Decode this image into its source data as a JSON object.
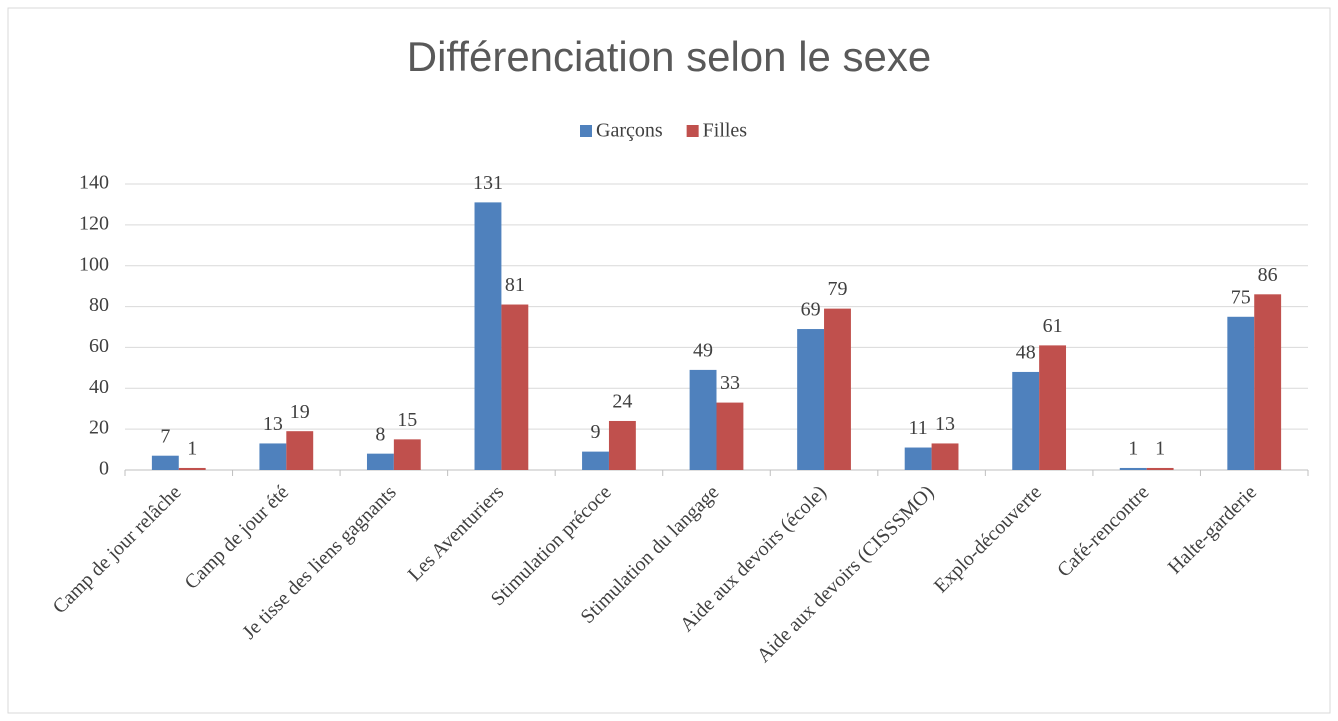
{
  "chart_data": {
    "type": "bar",
    "title": "Différenciation selon le sexe",
    "categories": [
      "Camp de jour relâche",
      "Camp de jour été",
      "Je tisse des liens gagnants",
      "Les Aventuriers",
      "Stimulation précoce",
      "Stimulation du langage",
      "Aide aux devoirs (école)",
      "Aide aux devoirs (CISSSMO)",
      "Explo-découverte",
      "Café-rencontre",
      "Halte-garderie"
    ],
    "series": [
      {
        "name": "Garçons",
        "color": "#4f81bd",
        "values": [
          7,
          13,
          8,
          131,
          9,
          49,
          69,
          11,
          48,
          1,
          75
        ]
      },
      {
        "name": "Filles",
        "color": "#c0504d",
        "values": [
          1,
          19,
          15,
          81,
          24,
          33,
          79,
          13,
          61,
          1,
          86
        ]
      }
    ],
    "ylim": [
      0,
      140
    ],
    "yticks": [
      0,
      20,
      40,
      60,
      80,
      100,
      120,
      140
    ],
    "grid": true,
    "legend": "top"
  }
}
